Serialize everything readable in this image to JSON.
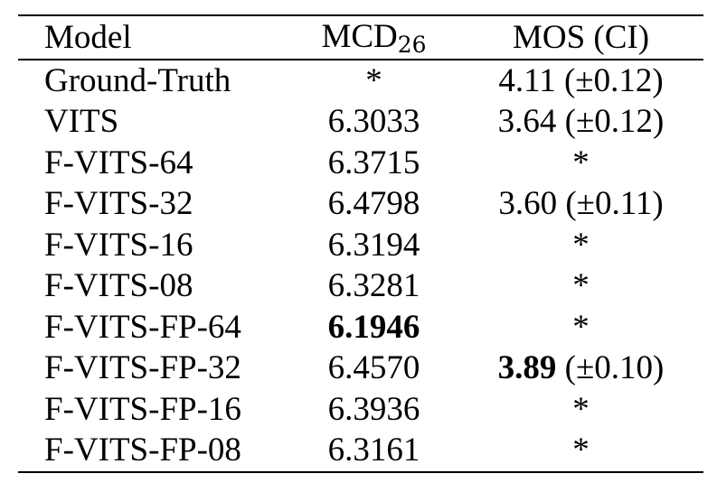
{
  "table": {
    "headers": {
      "model": "Model",
      "mcd_main": "MCD",
      "mcd_sub": "26",
      "mos": "MOS (CI)"
    },
    "rows": [
      {
        "model": "Ground-Truth",
        "mcd": "*",
        "mcd_bold": false,
        "mos_score": "4.11",
        "mos_ci": " (±0.12)",
        "mos_bold": false,
        "mos_star": false
      },
      {
        "model": "VITS",
        "mcd": "6.3033",
        "mcd_bold": false,
        "mos_score": "3.64",
        "mos_ci": " (±0.12)",
        "mos_bold": false,
        "mos_star": false
      },
      {
        "model": "F-VITS-64",
        "mcd": "6.3715",
        "mcd_bold": false,
        "mos_score": "*",
        "mos_ci": "",
        "mos_bold": false,
        "mos_star": true
      },
      {
        "model": "F-VITS-32",
        "mcd": "6.4798",
        "mcd_bold": false,
        "mos_score": "3.60",
        "mos_ci": " (±0.11)",
        "mos_bold": false,
        "mos_star": false
      },
      {
        "model": "F-VITS-16",
        "mcd": "6.3194",
        "mcd_bold": false,
        "mos_score": "*",
        "mos_ci": "",
        "mos_bold": false,
        "mos_star": true
      },
      {
        "model": "F-VITS-08",
        "mcd": "6.3281",
        "mcd_bold": false,
        "mos_score": "*",
        "mos_ci": "",
        "mos_bold": false,
        "mos_star": true
      },
      {
        "model": "F-VITS-FP-64",
        "mcd": "6.1946",
        "mcd_bold": true,
        "mos_score": "*",
        "mos_ci": "",
        "mos_bold": false,
        "mos_star": true
      },
      {
        "model": "F-VITS-FP-32",
        "mcd": "6.4570",
        "mcd_bold": false,
        "mos_score": "3.89",
        "mos_ci": " (±0.10)",
        "mos_bold": true,
        "mos_star": false
      },
      {
        "model": "F-VITS-FP-16",
        "mcd": "6.3936",
        "mcd_bold": false,
        "mos_score": "*",
        "mos_ci": "",
        "mos_bold": false,
        "mos_star": true
      },
      {
        "model": "F-VITS-FP-08",
        "mcd": "6.3161",
        "mcd_bold": false,
        "mos_score": "*",
        "mos_ci": "",
        "mos_bold": false,
        "mos_star": true
      }
    ]
  }
}
